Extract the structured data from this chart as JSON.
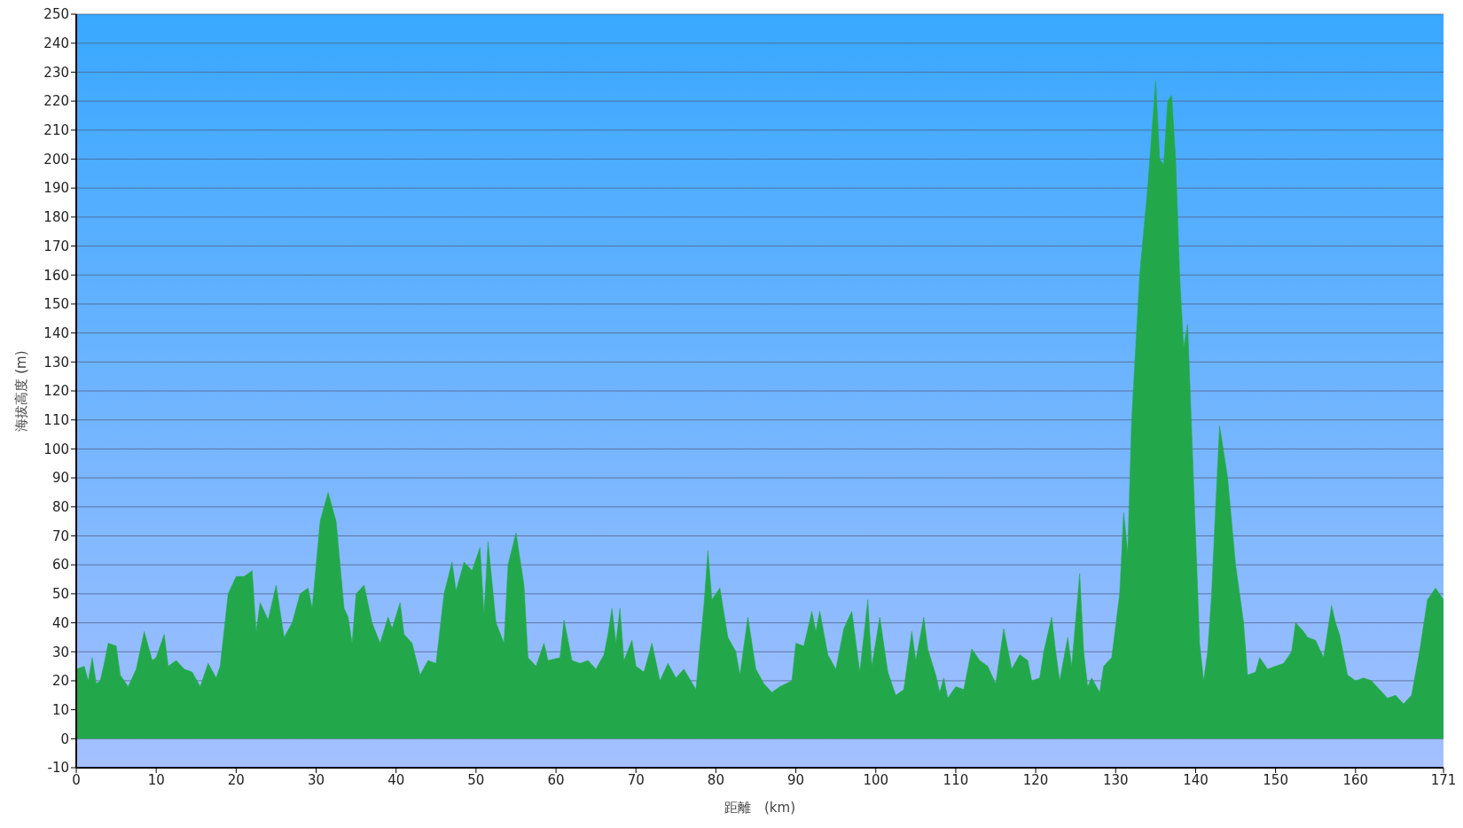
{
  "chart_data": {
    "type": "area",
    "xlabel": "距離　(km)",
    "ylabel": "海拔高度 (m)",
    "xlim": [
      0,
      171
    ],
    "xticks": [
      0,
      10,
      20,
      30,
      40,
      50,
      60,
      70,
      80,
      90,
      100,
      110,
      120,
      130,
      140,
      150,
      160,
      171
    ],
    "ylim": [
      -10,
      250
    ],
    "yticks": [
      -10,
      0,
      10,
      20,
      30,
      40,
      50,
      60,
      70,
      80,
      90,
      100,
      110,
      120,
      130,
      140,
      150,
      160,
      170,
      180,
      190,
      200,
      210,
      220,
      230,
      240,
      250
    ],
    "grid": "y",
    "legend": false,
    "marker": "none",
    "line_style": "solid",
    "x": [
      0,
      1,
      1.5,
      2,
      2.5,
      3,
      3.5,
      4,
      5,
      5.5,
      6.5,
      7.5,
      8.5,
      9.5,
      10,
      11,
      11.5,
      12.5,
      13.5,
      14.5,
      15.5,
      16.5,
      17.5,
      18,
      19,
      20,
      21,
      22,
      22.5,
      23,
      24,
      25,
      26,
      27,
      28,
      29,
      29.5,
      30.5,
      31.5,
      32.5,
      33.5,
      34,
      34.5,
      35,
      36,
      37,
      38,
      39,
      39.5,
      40.5,
      41,
      42,
      43,
      44,
      45,
      46,
      47,
      47.5,
      48.5,
      49.5,
      50.5,
      51,
      51.5,
      52.5,
      53.5,
      54,
      55,
      56,
      56.5,
      57.5,
      58.5,
      59,
      60.5,
      61,
      62,
      63,
      64,
      65,
      66,
      66.5,
      67,
      67.5,
      68,
      68.5,
      69.5,
      70,
      71,
      72,
      73,
      74,
      75,
      76,
      77.5,
      78.5,
      79,
      79.5,
      80.5,
      81.5,
      82.5,
      83,
      84,
      85,
      86,
      87,
      88,
      89.5,
      90,
      91,
      92,
      92.5,
      93,
      94,
      95,
      96,
      97,
      98,
      99,
      99.5,
      100.5,
      101.5,
      102.5,
      103.5,
      104.5,
      105,
      106,
      106.5,
      107.5,
      108,
      108.5,
      109,
      110,
      111,
      112,
      113,
      114,
      115,
      116,
      117,
      118,
      119,
      119.5,
      120.5,
      121,
      122,
      122.5,
      123,
      124,
      124.5,
      125.5,
      126,
      126.5,
      127,
      128,
      128.5,
      129.5,
      130.5,
      131,
      131.5,
      132,
      133,
      134,
      135,
      135.5,
      136,
      136.5,
      137,
      137.5,
      138,
      138.5,
      139,
      140,
      140.5,
      141,
      141.5,
      142,
      142.5,
      143,
      144,
      145,
      146,
      146.5,
      147.5,
      148,
      149,
      150,
      151,
      152,
      152.5,
      153.5,
      154,
      155,
      156,
      157,
      157.5,
      158,
      159,
      160,
      161,
      162,
      163,
      164,
      165,
      166,
      167,
      168,
      169,
      170,
      171
    ],
    "series": [
      {
        "color": "#22a84a",
        "values": [
          24,
          25,
          20,
          28,
          19,
          20,
          26,
          33,
          32,
          22,
          18,
          24,
          37,
          27,
          28,
          36,
          25,
          27,
          24,
          23,
          18,
          26,
          21,
          25,
          50,
          56,
          56,
          58,
          37,
          47,
          41,
          53,
          35,
          40,
          50,
          52,
          45,
          75,
          85,
          75,
          45,
          42,
          33,
          50,
          53,
          40,
          33,
          42,
          38,
          47,
          36,
          33,
          22,
          27,
          26,
          50,
          61,
          51,
          61,
          58,
          66,
          43,
          68,
          40,
          33,
          60,
          71,
          53,
          28,
          25,
          33,
          27,
          28,
          41,
          27,
          26,
          27,
          24,
          29,
          36,
          45,
          33,
          45,
          27,
          34,
          25,
          23,
          33,
          20,
          26,
          21,
          24,
          17,
          46,
          65,
          48,
          52,
          35,
          30,
          22,
          42,
          24,
          19,
          16,
          18,
          20,
          33,
          32,
          44,
          37,
          44,
          29,
          24,
          38,
          44,
          23,
          48,
          25,
          42,
          23,
          15,
          17,
          37,
          27,
          42,
          31,
          22,
          16,
          21,
          14,
          18,
          17,
          31,
          27,
          25,
          19,
          38,
          24,
          29,
          27,
          20,
          21,
          30,
          42,
          30,
          20,
          35,
          25,
          57,
          30,
          18,
          21,
          16,
          25,
          28,
          50,
          78,
          64,
          110,
          160,
          190,
          227,
          200,
          198,
          220,
          222,
          200,
          160,
          135,
          143,
          70,
          33,
          20,
          30,
          50,
          80,
          108,
          90,
          60,
          40,
          22,
          23,
          28,
          24,
          25,
          26,
          30,
          40,
          37,
          35,
          34,
          28,
          46,
          40,
          36,
          22,
          20,
          21,
          20,
          17,
          14,
          15,
          12,
          15,
          30,
          48,
          52,
          48
        ]
      }
    ]
  }
}
